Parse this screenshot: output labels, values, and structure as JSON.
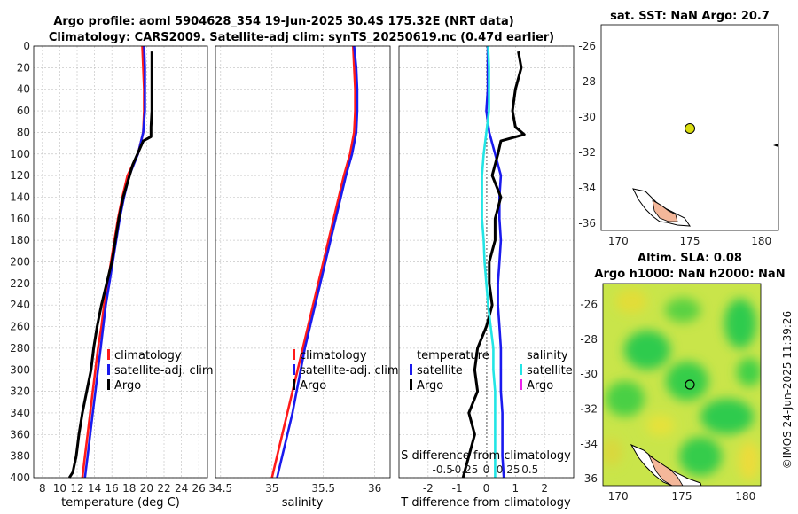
{
  "figure": {
    "title_line1": "Argo profile: aoml 5904628_354 19-Jun-2025 30.4S 175.32E (NRT data)",
    "title_line2": "Climatology: CARS2009. Satellite-adj clim: synTS_20250619.nc (0.47d earlier)",
    "watermark": "©IMOS 24-Jun-2025 11:39:26"
  },
  "colors": {
    "climatology": "#ff1a1a",
    "satellite": "#1a1aee",
    "argo": "#000000",
    "sal_satellite": "#22e5e5",
    "sal_argo": "#ee22ee"
  },
  "chart_data": [
    {
      "id": "temperature",
      "type": "line",
      "xlabel": "temperature (deg C)",
      "ylabel": "",
      "xlim": [
        7,
        27
      ],
      "ylim": [
        0,
        400
      ],
      "yreversed": true,
      "xticks": [
        8,
        10,
        12,
        14,
        16,
        18,
        20,
        22,
        24,
        26
      ],
      "yticks": [
        0,
        20,
        40,
        60,
        80,
        100,
        120,
        140,
        160,
        180,
        200,
        220,
        240,
        260,
        280,
        300,
        320,
        340,
        360,
        380,
        400
      ],
      "legend": {
        "position": "right",
        "entries": [
          "climatology",
          "satellite-adj. clim",
          "Argo"
        ]
      },
      "series": [
        {
          "name": "climatology",
          "color": "#ff1a1a",
          "x": [
            19.5,
            19.6,
            19.7,
            19.7,
            19.6,
            19.0,
            17.8,
            17.2,
            16.7,
            16.3,
            15.9,
            15.5,
            15.1,
            14.8,
            14.4,
            14.1,
            13.8,
            13.5,
            13.2,
            12.9,
            12.6
          ],
          "y": [
            0,
            20,
            40,
            60,
            80,
            100,
            120,
            140,
            160,
            180,
            200,
            220,
            240,
            260,
            280,
            300,
            320,
            340,
            360,
            380,
            400
          ]
        },
        {
          "name": "satellite-adj. clim",
          "color": "#1a1aee",
          "x": [
            19.7,
            19.8,
            19.8,
            19.8,
            19.6,
            19.0,
            18.0,
            17.4,
            16.9,
            16.5,
            16.1,
            15.7,
            15.3,
            15.0,
            14.7,
            14.4,
            14.1,
            13.8,
            13.5,
            13.2,
            12.9
          ],
          "y": [
            0,
            20,
            40,
            60,
            80,
            100,
            120,
            140,
            160,
            180,
            200,
            220,
            240,
            260,
            280,
            300,
            320,
            340,
            360,
            380,
            400
          ]
        },
        {
          "name": "Argo",
          "color": "#000000",
          "x": [
            20.6,
            20.6,
            20.6,
            20.6,
            20.5,
            20.5,
            19.6,
            18.4,
            17.3,
            16.8,
            16.4,
            16.0,
            15.4,
            14.8,
            14.3,
            13.9,
            13.6,
            13.1,
            12.6,
            12.2,
            11.9,
            11.5,
            11.1
          ],
          "y": [
            5,
            20,
            40,
            60,
            75,
            84,
            88,
            110,
            140,
            160,
            180,
            200,
            220,
            240,
            260,
            280,
            300,
            320,
            340,
            360,
            380,
            395,
            400
          ]
        }
      ]
    },
    {
      "id": "salinity",
      "type": "line",
      "xlabel": "salinity",
      "xlim": [
        34.45,
        36.15
      ],
      "ylim": [
        0,
        400
      ],
      "yreversed": true,
      "xticks": [
        34.5,
        35,
        35.5,
        36
      ],
      "xticklabels": [
        "34.5",
        "35",
        "35.5",
        "36"
      ],
      "legend": {
        "position": "right",
        "entries": [
          "climatology",
          "satellite-adj. clim",
          "Argo"
        ]
      },
      "series": [
        {
          "name": "climatology",
          "color": "#ff1a1a",
          "x": [
            35.79,
            35.8,
            35.81,
            35.81,
            35.8,
            35.76,
            35.7,
            35.65,
            35.6,
            35.55,
            35.5,
            35.45,
            35.4,
            35.35,
            35.3,
            35.25,
            35.2,
            35.15,
            35.1,
            35.05,
            35.0
          ],
          "y": [
            0,
            20,
            40,
            60,
            80,
            100,
            120,
            140,
            160,
            180,
            200,
            220,
            240,
            260,
            280,
            300,
            320,
            340,
            360,
            380,
            400
          ]
        },
        {
          "name": "satellite-adj. clim",
          "color": "#1a1aee",
          "x": [
            35.8,
            35.82,
            35.83,
            35.83,
            35.82,
            35.78,
            35.72,
            35.67,
            35.62,
            35.57,
            35.52,
            35.47,
            35.42,
            35.37,
            35.32,
            35.28,
            35.24,
            35.2,
            35.15,
            35.1,
            35.05
          ],
          "y": [
            0,
            20,
            40,
            60,
            80,
            100,
            120,
            140,
            160,
            180,
            200,
            220,
            240,
            260,
            280,
            300,
            320,
            340,
            360,
            380,
            400
          ]
        }
      ]
    },
    {
      "id": "difference",
      "type": "line",
      "xlabel": "T difference from climatology",
      "toplabel": "S difference from climatology",
      "xlim": [
        -3,
        3
      ],
      "ylim": [
        0,
        400
      ],
      "yreversed": true,
      "xticks": [
        -2,
        -1,
        0,
        1,
        2
      ],
      "xticklabels": [
        "-2",
        "-1",
        "0",
        "1",
        "2"
      ],
      "sticks": [
        -0.5,
        -0.25,
        0,
        0.25,
        0.5
      ],
      "sticklabels": [
        "-0.5",
        "-0.25",
        "0",
        "0.25",
        "0.5"
      ],
      "legend_left": {
        "title": "temperature",
        "entries": [
          "satellite",
          "Argo"
        ]
      },
      "legend_right": {
        "title": "salinity",
        "entries": [
          "satellite",
          "Argo"
        ]
      },
      "series": [
        {
          "name": "T satellite",
          "color": "#1a1aee",
          "x": [
            0.05,
            0.05,
            0.05,
            0.0,
            0.1,
            0.3,
            0.5,
            0.45,
            0.45,
            0.5,
            0.45,
            0.4,
            0.4,
            0.45,
            0.5,
            0.5,
            0.5,
            0.55,
            0.55,
            0.55,
            0.6
          ],
          "y": [
            0,
            20,
            40,
            60,
            80,
            100,
            120,
            140,
            160,
            180,
            200,
            220,
            240,
            260,
            280,
            300,
            320,
            340,
            360,
            380,
            400
          ]
        },
        {
          "name": "T Argo",
          "color": "#000000",
          "x": [
            1.1,
            1.2,
            1.0,
            0.9,
            1.0,
            1.3,
            0.5,
            0.4,
            0.2,
            0.5,
            0.3,
            0.3,
            0.1,
            0.1,
            0.2,
            0.0,
            -0.3,
            -0.4,
            -0.3,
            -0.6,
            -0.4,
            -0.6,
            -0.8
          ],
          "y": [
            5,
            20,
            40,
            60,
            75,
            82,
            88,
            100,
            120,
            140,
            160,
            180,
            200,
            220,
            240,
            260,
            280,
            300,
            320,
            340,
            360,
            380,
            400
          ]
        },
        {
          "name": "S satellite",
          "color": "#22e5e5",
          "x": [
            0.02,
            0.03,
            0.03,
            0.03,
            0.0,
            -0.03,
            -0.05,
            -0.05,
            -0.05,
            -0.03,
            -0.02,
            0.0,
            0.02,
            0.05,
            0.08,
            0.08,
            0.1,
            0.1,
            0.1,
            0.1,
            0.1
          ],
          "y": [
            0,
            20,
            40,
            60,
            80,
            100,
            120,
            140,
            160,
            180,
            200,
            220,
            240,
            260,
            280,
            300,
            320,
            340,
            360,
            380,
            400
          ]
        }
      ]
    }
  ],
  "maps": {
    "top": {
      "title": "sat. SST: NaN Argo: 20.7",
      "xticks": [
        "170",
        "175",
        "180"
      ],
      "yticks": [
        "-26",
        "-28",
        "-30",
        "-32",
        "-34",
        "-36"
      ],
      "marker": {
        "lon": 175.32,
        "lat": -30.4,
        "color": "#d9dc10"
      }
    },
    "bottom": {
      "title1": "Altim. SLA: 0.08",
      "title2": "Argo h1000: NaN h2000: NaN",
      "xticks": [
        "170",
        "175",
        "180"
      ],
      "yticks": [
        "-26",
        "-28",
        "-30",
        "-32",
        "-34",
        "-36"
      ],
      "marker": {
        "lon": 175.32,
        "lat": -30.4
      }
    }
  }
}
